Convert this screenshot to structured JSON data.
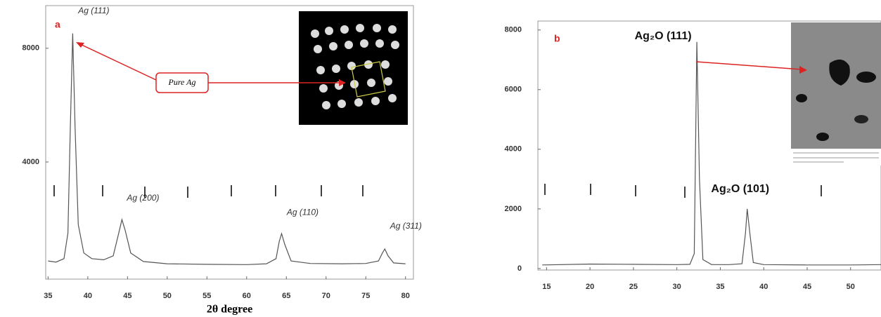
{
  "chart_data": [
    {
      "type": "line",
      "panel_label": "a",
      "xlabel": "2θ degree",
      "x": [
        35,
        36,
        37,
        37.5,
        37.8,
        38.1,
        38.4,
        38.8,
        39.5,
        40.5,
        42,
        43.2,
        43.9,
        44.3,
        44.7,
        45.4,
        47,
        50,
        55,
        60,
        62.5,
        63.7,
        64.1,
        64.4,
        64.8,
        65.6,
        68,
        72,
        75,
        76.6,
        77.1,
        77.4,
        77.8,
        78.5,
        80
      ],
      "series": [
        {
          "color": "#555555",
          "values": [
            520,
            480,
            600,
            1500,
            5200,
            8520,
            5200,
            1800,
            800,
            600,
            560,
            700,
            1500,
            1975,
            1600,
            800,
            500,
            420,
            400,
            390,
            420,
            600,
            1200,
            1480,
            1100,
            520,
            430,
            420,
            430,
            520,
            800,
            940,
            700,
            450,
            420
          ]
        }
      ],
      "xlim": [
        34.7,
        81
      ],
      "xticks": [
        35,
        40,
        45,
        50,
        55,
        60,
        65,
        70,
        75,
        80
      ],
      "ylim": [
        -120,
        9500
      ],
      "yticks": [
        4000,
        8000
      ],
      "grid": false,
      "annotations": [
        {
          "text": "Ag (111)",
          "x": 38.1,
          "y": 8520
        },
        {
          "text": "Ag (200)",
          "x": 44.3,
          "y": 1975
        },
        {
          "text": "Ag (110)",
          "x": 64.4,
          "y": 1480
        },
        {
          "text": "Ag (311)",
          "x": 77.4,
          "y": 940
        }
      ],
      "callout": "Pure Ag"
    },
    {
      "type": "line",
      "panel_label": "b",
      "x": [
        14.5,
        20,
        25,
        30,
        31.5,
        32.0,
        32.3,
        32.6,
        33,
        34,
        36,
        37.5,
        37.9,
        38.1,
        38.4,
        38.8,
        40,
        45,
        50,
        53.5
      ],
      "series": [
        {
          "color": "#555555",
          "values": [
            120,
            150,
            140,
            130,
            140,
            500,
            7600,
            3000,
            300,
            130,
            130,
            160,
            1200,
            2000,
            1200,
            200,
            130,
            120,
            120,
            130
          ]
        }
      ],
      "xlim": [
        14,
        53.5
      ],
      "xticks": [
        15,
        20,
        25,
        30,
        35,
        40,
        45,
        50
      ],
      "ylim": [
        -50,
        8300
      ],
      "yticks": [
        0,
        2000,
        4000,
        6000,
        8000
      ],
      "grid": false,
      "annotations": [
        {
          "text": "Ag₂O (111)",
          "x": 32.3,
          "y": 7600
        },
        {
          "text": "Ag₂O (101)",
          "x": 38.1,
          "y": 2000
        }
      ]
    }
  ]
}
